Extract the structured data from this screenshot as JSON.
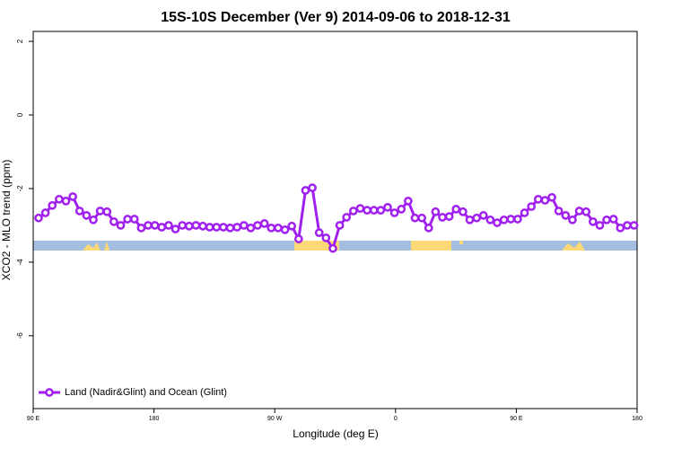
{
  "chart_data": {
    "type": "line",
    "title": "15S-10S December (Ver 9)   2014-09-06 to 2018-12-31",
    "xlabel": "Longitude (deg E)",
    "ylabel": "XCO2 - MLO trend (ppm)",
    "x": [
      94,
      99.1,
      104.2,
      109.3,
      114.4,
      119.5,
      124.6,
      129.7,
      134.8,
      139.9,
      145,
      150.1,
      155.2,
      160.3,
      165.4,
      170.5,
      175.6,
      180.7,
      185.8,
      190.9,
      196,
      201.1,
      206.2,
      211.3,
      216.4,
      221.5,
      226.6,
      231.7,
      236.8,
      241.9,
      247,
      252.1,
      257.2,
      262.3,
      267.4,
      272.5,
      277.6,
      282.7,
      287.8,
      292.9,
      298,
      303.1,
      308.2,
      313.3,
      318.4,
      323.5,
      328.6,
      333.7,
      338.8,
      343.9,
      349,
      354.1,
      359.2,
      364.3,
      369.4,
      374.5,
      379.6,
      384.7,
      389.8,
      394.9,
      400,
      405.1,
      410.2,
      415.3,
      420.4,
      425.5,
      430.6,
      435.7,
      440.8,
      445.9,
      451,
      456.1,
      461.2,
      466.3,
      471.4,
      476.5,
      481.6,
      486.7,
      491.8,
      496.9,
      502,
      507.1,
      512.2,
      517.3,
      522.4,
      527.5,
      532.6,
      537.7
    ],
    "series": [
      {
        "name": "Land (Nadir&Glint) and Ocean (Glint)",
        "color": "#a020f0",
        "values": [
          -2.8,
          -2.66,
          -2.46,
          -2.29,
          -2.34,
          -2.22,
          -2.61,
          -2.73,
          -2.85,
          -2.61,
          -2.63,
          -2.9,
          -3.0,
          -2.83,
          -2.83,
          -3.07,
          -3.0,
          -3.0,
          -3.05,
          -3.0,
          -3.1,
          -3.0,
          -3.02,
          -3.0,
          -3.02,
          -3.05,
          -3.05,
          -3.05,
          -3.07,
          -3.05,
          -3.0,
          -3.07,
          -3.0,
          -2.95,
          -3.07,
          -3.07,
          -3.12,
          -3.02,
          -3.37,
          -2.05,
          -1.98,
          -3.2,
          -3.34,
          -3.63,
          -3.0,
          -2.78,
          -2.61,
          -2.54,
          -2.59,
          -2.59,
          -2.59,
          -2.51,
          -2.66,
          -2.56,
          -2.34,
          -2.8,
          -2.8,
          -3.07,
          -2.63,
          -2.78,
          -2.76,
          -2.56,
          -2.63,
          -2.85,
          -2.8,
          -2.73,
          -2.85,
          -2.93,
          -2.85,
          -2.83,
          -2.83,
          -2.66,
          -2.49,
          -2.29,
          -2.32,
          -2.24,
          -2.61,
          -2.73,
          -2.85,
          -2.61,
          -2.63,
          -2.9,
          -3.0,
          -2.85,
          -2.83,
          -3.07,
          -3.0,
          -3.0
        ]
      }
    ],
    "xlim": [
      90,
      540
    ],
    "xticks": [
      {
        "value": 90,
        "label": "90 E"
      },
      180,
      {
        "value": 270,
        "label": "90 W"
      },
      {
        "value": 360,
        "label": "0"
      },
      {
        "value": 450,
        "label": "90 E"
      },
      {
        "value": 540,
        "label": "180"
      }
    ],
    "ylim": [
      -7.98,
      2.27
    ],
    "yticks": [
      -6,
      -4,
      -2,
      0,
      2
    ],
    "legend": "bottom-left"
  }
}
